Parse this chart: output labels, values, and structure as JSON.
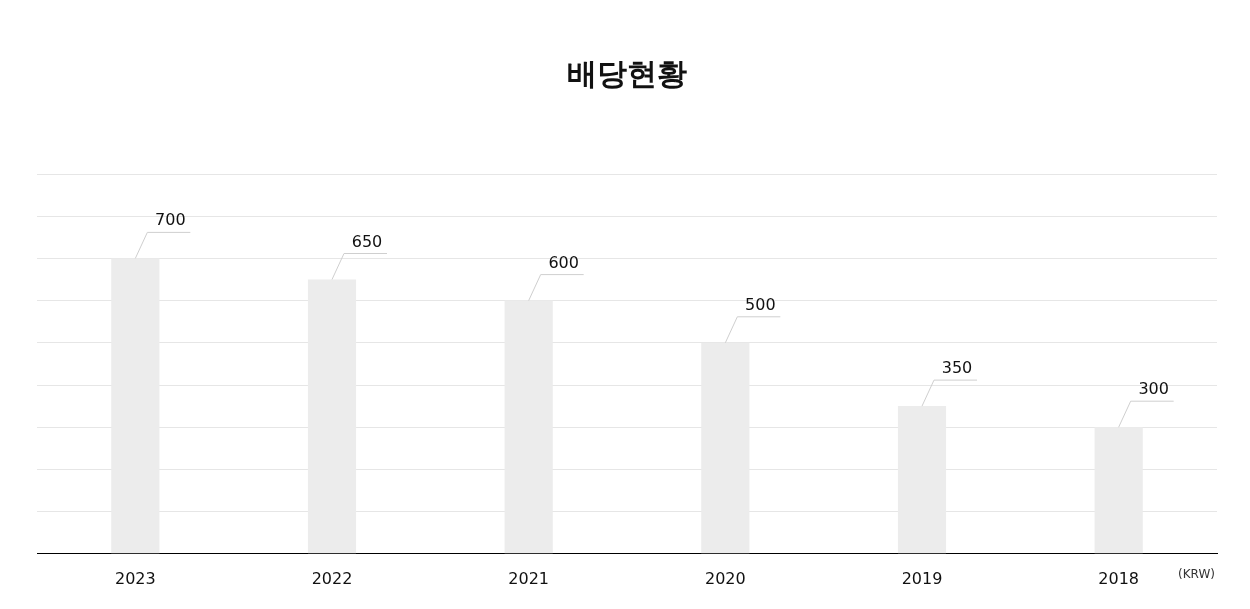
{
  "chart_data": {
    "type": "bar",
    "title": "배당현황",
    "categories": [
      "2023",
      "2022",
      "2021",
      "2020",
      "2019",
      "2018"
    ],
    "values": [
      700,
      650,
      600,
      500,
      350,
      300
    ],
    "color": "#ececec",
    "ylim": [
      0,
      900
    ],
    "yticks": [
      {
        "value": 0,
        "label": null
      },
      {
        "value": 100,
        "label": null
      },
      {
        "value": 200,
        "label": null
      },
      {
        "value": 300,
        "label": null
      },
      {
        "value": 400,
        "label": null
      },
      {
        "value": 500,
        "label": null
      },
      {
        "value": 600,
        "label": null
      },
      {
        "value": 700,
        "label": null
      },
      {
        "value": 800,
        "label": null
      },
      {
        "value": 900,
        "label": null
      }
    ],
    "tick_labels": "x",
    "grid": "y",
    "data_labels": true,
    "legend": false,
    "annotations": [
      "(KRW)"
    ]
  }
}
